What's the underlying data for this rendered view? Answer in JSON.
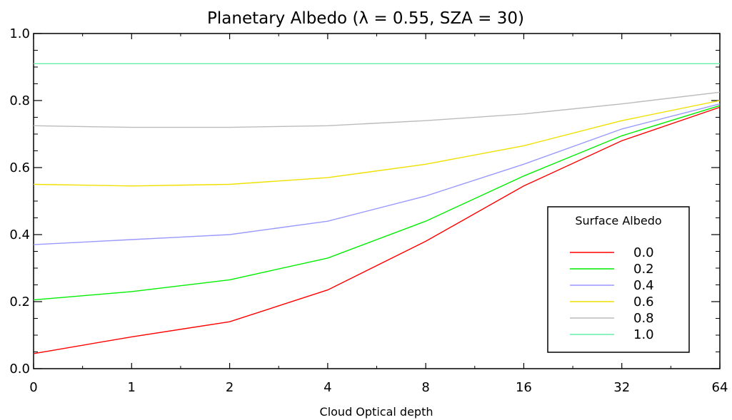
{
  "chart_data": {
    "type": "line",
    "title": "Planetary Albedo (λ = 0.55, SZA = 30)",
    "xlabel": "Cloud Optical depth",
    "ylabel": "",
    "x": [
      "0",
      "1",
      "2",
      "4",
      "8",
      "16",
      "32",
      "64"
    ],
    "ylim": [
      0.0,
      1.0
    ],
    "yticks": [
      "0.0",
      "0.2",
      "0.4",
      "0.6",
      "0.8",
      "1.0"
    ],
    "grid": false,
    "legend": {
      "title": "Surface Albedo",
      "position": "right"
    },
    "series": [
      {
        "name": "0.0",
        "color": "#ff0000",
        "values": [
          0.045,
          0.095,
          0.14,
          0.235,
          0.38,
          0.545,
          0.68,
          0.78
        ]
      },
      {
        "name": "0.2",
        "color": "#00ee00",
        "values": [
          0.205,
          0.23,
          0.265,
          0.33,
          0.44,
          0.575,
          0.695,
          0.785
        ]
      },
      {
        "name": "0.4",
        "color": "#9999ff",
        "values": [
          0.37,
          0.385,
          0.4,
          0.44,
          0.515,
          0.61,
          0.715,
          0.79
        ]
      },
      {
        "name": "0.6",
        "color": "#f0e000",
        "values": [
          0.55,
          0.545,
          0.55,
          0.57,
          0.61,
          0.665,
          0.74,
          0.8
        ]
      },
      {
        "name": "0.8",
        "color": "#bbbbbb",
        "values": [
          0.725,
          0.72,
          0.72,
          0.725,
          0.74,
          0.76,
          0.79,
          0.825
        ]
      },
      {
        "name": "1.0",
        "color": "#66eeaa",
        "values": [
          0.91,
          0.91,
          0.91,
          0.91,
          0.91,
          0.91,
          0.91,
          0.91
        ]
      }
    ]
  }
}
